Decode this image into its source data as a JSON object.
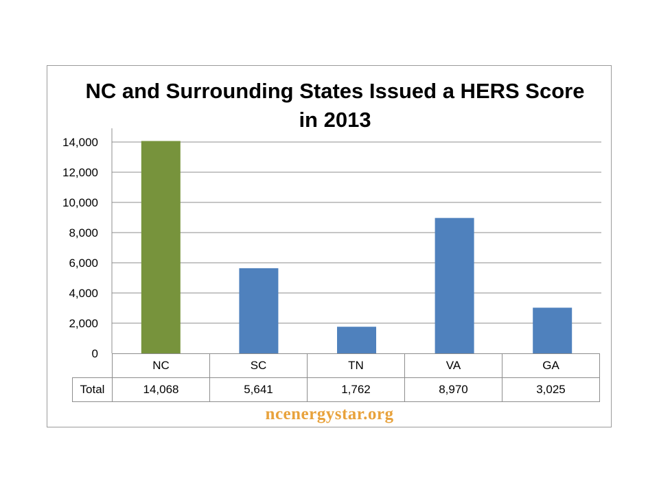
{
  "chart_data": {
    "type": "bar",
    "title": "NC and Surrounding States Issued a HERS Score in 2013",
    "title_lines": [
      "NC and Surrounding States Issued a HERS Score",
      "in 2013"
    ],
    "categories": [
      "NC",
      "SC",
      "TN",
      "VA",
      "GA"
    ],
    "series": [
      {
        "name": "Total",
        "values": [
          14068,
          5641,
          1762,
          8970,
          3025
        ]
      }
    ],
    "value_labels": [
      "14,068",
      "5,641",
      "1,762",
      "8,970",
      "3,025"
    ],
    "bar_colors": [
      "#77933c",
      "#4f81bd",
      "#4f81bd",
      "#4f81bd",
      "#4f81bd"
    ],
    "ylim": [
      0,
      14000
    ],
    "yticks": [
      0,
      2000,
      4000,
      6000,
      8000,
      10000,
      12000,
      14000
    ],
    "ytick_labels": [
      "0",
      "2,000",
      "4,000",
      "6,000",
      "8,000",
      "10,000",
      "12,000",
      "14,000"
    ],
    "xlabel": "",
    "ylabel": "",
    "grid": true,
    "legend": "none",
    "data_table": true
  },
  "watermark": "ncenergystar.org",
  "colors": {
    "gridline": "#8c8c8c",
    "axis": "#8c8c8c",
    "watermark": "#e8a23c"
  }
}
